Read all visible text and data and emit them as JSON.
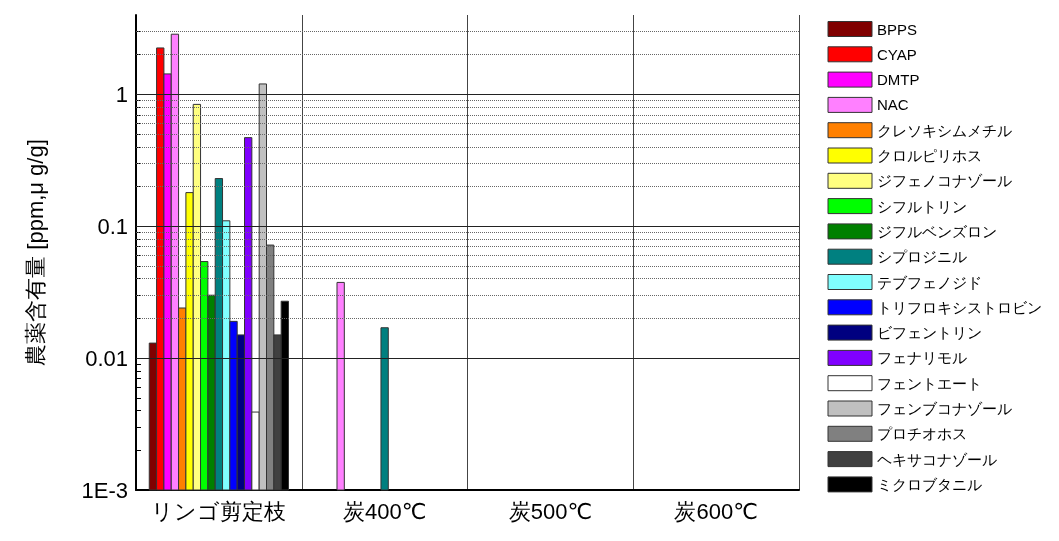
{
  "chart_data": {
    "type": "bar",
    "ylabel": "農薬含有量 [ppm,μ g/g]",
    "categories": [
      "リンゴ剪定枝",
      "炭400℃",
      "炭500℃",
      "炭600℃"
    ],
    "log": true,
    "ylim": [
      0.001,
      4
    ],
    "yticks": [
      {
        "value": 0.001,
        "label": "1E-3"
      },
      {
        "value": 0.002,
        "label": null
      },
      {
        "value": 0.003,
        "label": null
      },
      {
        "value": 0.004,
        "label": null
      },
      {
        "value": 0.005,
        "label": null
      },
      {
        "value": 0.006,
        "label": null
      },
      {
        "value": 0.007,
        "label": null
      },
      {
        "value": 0.008,
        "label": null
      },
      {
        "value": 0.009,
        "label": null
      },
      0.01,
      {
        "value": 0.02,
        "label": null
      },
      {
        "value": 0.03,
        "label": null
      },
      {
        "value": 0.04,
        "label": null
      },
      {
        "value": 0.05,
        "label": null
      },
      {
        "value": 0.06,
        "label": null
      },
      {
        "value": 0.07,
        "label": null
      },
      {
        "value": 0.08,
        "label": null
      },
      {
        "value": 0.09,
        "label": null
      },
      0.1,
      {
        "value": 0.2,
        "label": null
      },
      {
        "value": 0.3,
        "label": null
      },
      {
        "value": 0.4,
        "label": null
      },
      {
        "value": 0.5,
        "label": null
      },
      {
        "value": 0.6,
        "label": null
      },
      {
        "value": 0.7,
        "label": null
      },
      {
        "value": 0.8,
        "label": null
      },
      {
        "value": 0.9,
        "label": null
      },
      1,
      {
        "value": 2,
        "label": null
      },
      {
        "value": 3,
        "label": null
      }
    ],
    "grid": true,
    "legend": "right",
    "series": [
      {
        "name": "BPPS",
        "color": "#800000",
        "values": [
          0.013,
          null,
          null,
          null
        ]
      },
      {
        "name": "CYAP",
        "color": "#ff0000",
        "values": [
          2.25,
          null,
          null,
          null
        ]
      },
      {
        "name": "DMTP",
        "color": "#ff00ff",
        "values": [
          1.43,
          null,
          null,
          null
        ]
      },
      {
        "name": "NAC",
        "color": "#ff80ff",
        "values": [
          2.86,
          0.0375,
          null,
          null
        ]
      },
      {
        "name": "クレソキシムメチル",
        "color": "#ff8000",
        "values": [
          0.024,
          null,
          null,
          null
        ]
      },
      {
        "name": "クロルピリホス",
        "color": "#ffff00",
        "values": [
          0.18,
          null,
          null,
          null
        ]
      },
      {
        "name": "ジフェノコナゾール",
        "color": "#ffff80",
        "values": [
          0.84,
          null,
          null,
          null
        ]
      },
      {
        "name": "シフルトリン",
        "color": "#00ff00",
        "values": [
          0.054,
          null,
          null,
          null
        ]
      },
      {
        "name": "ジフルベンズロン",
        "color": "#008000",
        "values": [
          0.03,
          null,
          null,
          null
        ]
      },
      {
        "name": "シプロジニル",
        "color": "#008080",
        "values": [
          0.23,
          0.017,
          null,
          null
        ]
      },
      {
        "name": "テブフェノジド",
        "color": "#80ffff",
        "values": [
          0.11,
          null,
          null,
          null
        ]
      },
      {
        "name": "トリフロキシストロビン",
        "color": "#0000ff",
        "values": [
          0.019,
          null,
          null,
          null
        ]
      },
      {
        "name": "ビフェントリン",
        "color": "#000080",
        "values": [
          0.015,
          null,
          null,
          null
        ]
      },
      {
        "name": "フェナリモル",
        "color": "#8000ff",
        "values": [
          0.47,
          null,
          null,
          null
        ]
      },
      {
        "name": "フェントエート",
        "color": "#ffffff",
        "values": [
          0.0039,
          null,
          null,
          null
        ]
      },
      {
        "name": "フェンブコナゾール",
        "color": "#c0c0c0",
        "values": [
          1.2,
          null,
          null,
          null
        ]
      },
      {
        "name": "プロチオホス",
        "color": "#808080",
        "values": [
          0.072,
          null,
          null,
          null
        ]
      },
      {
        "name": "ヘキサコナゾール",
        "color": "#404040",
        "values": [
          0.015,
          null,
          null,
          null
        ]
      },
      {
        "name": "ミクロブタニル",
        "color": "#000000",
        "values": [
          0.027,
          null,
          null,
          null
        ]
      }
    ]
  }
}
